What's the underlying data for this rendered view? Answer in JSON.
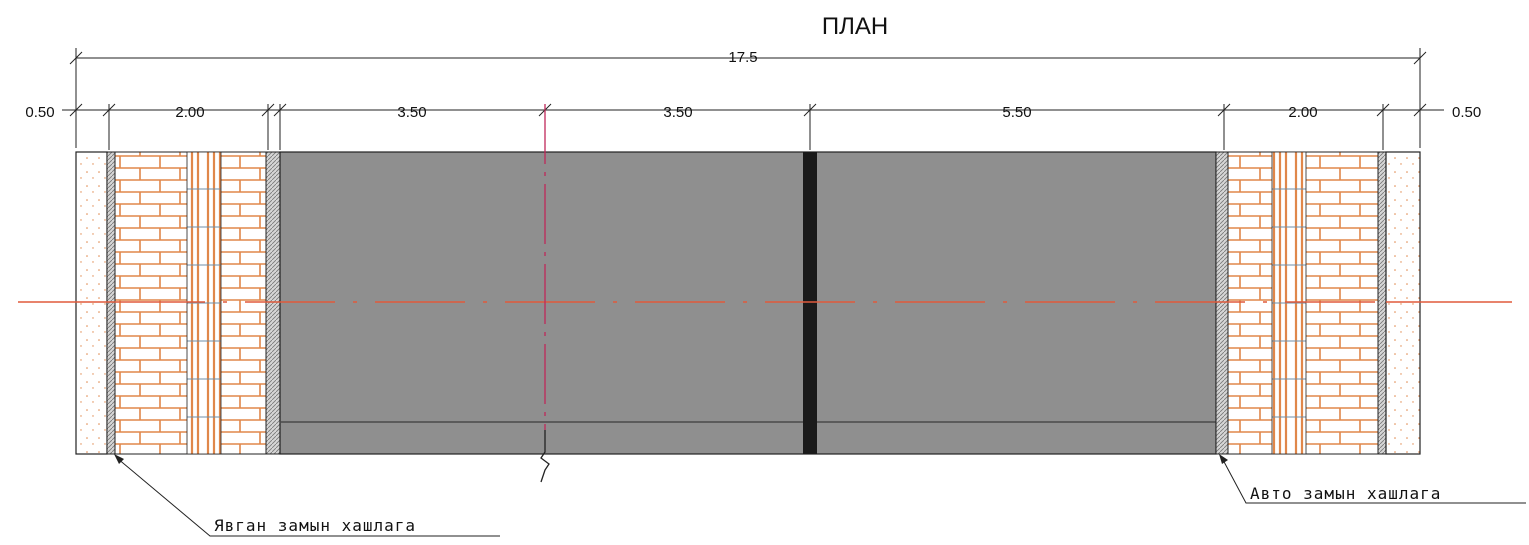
{
  "title": "ПЛАН",
  "dimensions": {
    "overall": "17.5",
    "segments": [
      "0.50",
      "2.00",
      "3.50",
      "3.50",
      "5.50",
      "2.00",
      "0.50"
    ]
  },
  "callouts": {
    "left": "Явган замын хашлага",
    "right": "Авто замын хашлага"
  },
  "colors": {
    "asphalt": "#8f8f8f",
    "brick": "#e0874a",
    "centerline": "#e05a3c",
    "axis": "#c0285a",
    "sand": "#e0874a"
  }
}
